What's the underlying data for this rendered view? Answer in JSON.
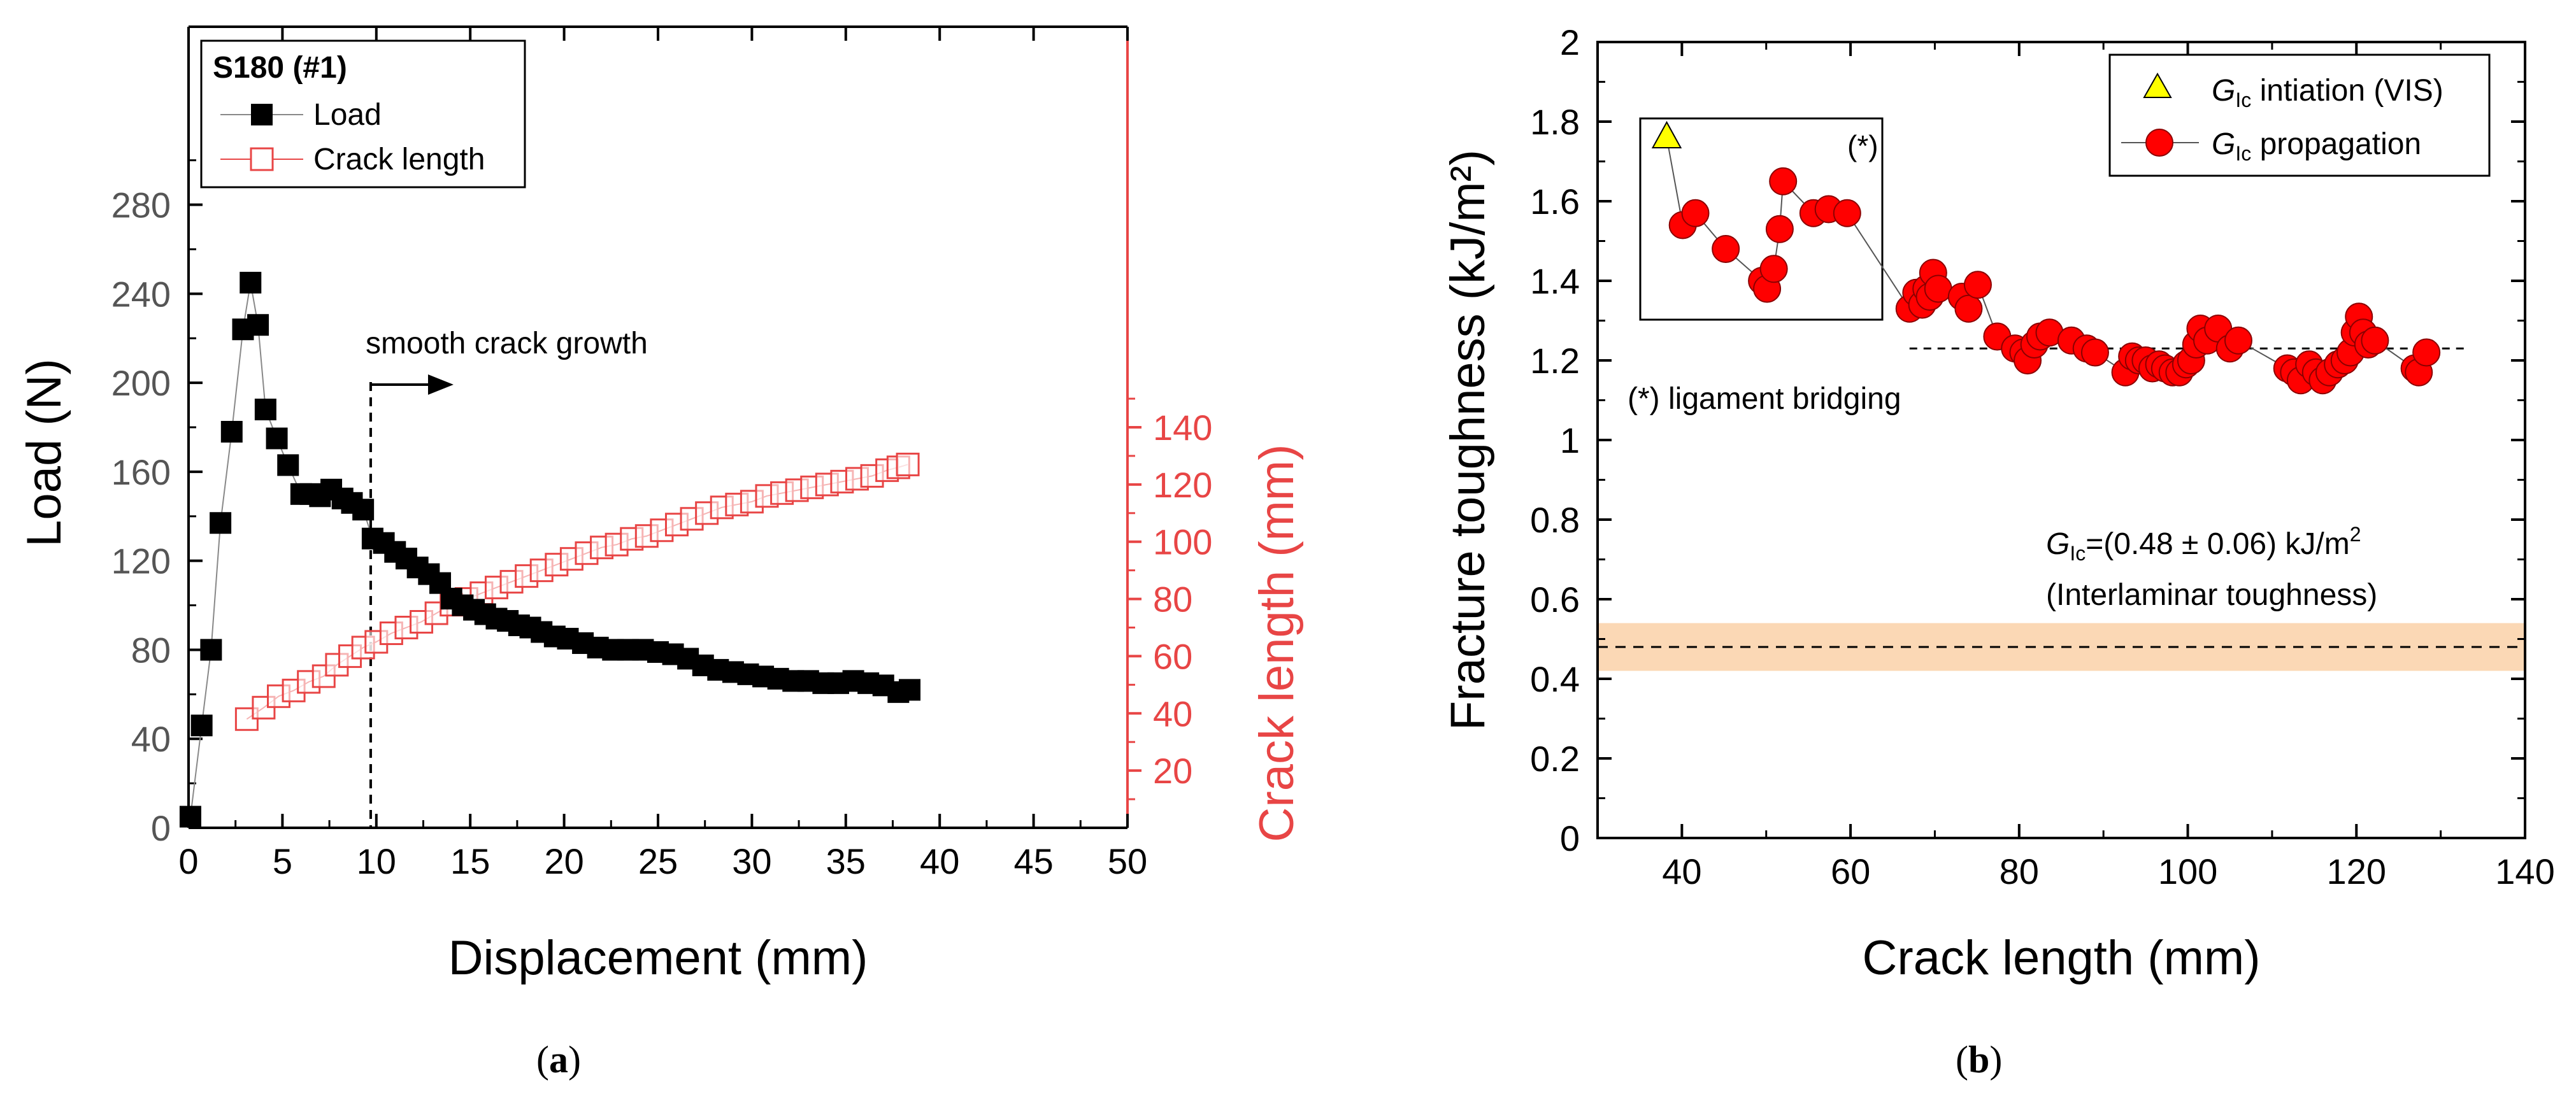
{
  "chart_data": [
    {
      "type": "scatter",
      "panel_label": "a",
      "legend": {
        "title": "S180 (#1)",
        "entries": [
          "Load",
          "Crack length"
        ],
        "placement": "top-left"
      },
      "xlabel": "Displacement (mm)",
      "ylabel": "Load (N)",
      "ylabel_right": "Crack length (mm)",
      "xlim": [
        0,
        50
      ],
      "ylim": [
        0,
        360
      ],
      "ylim_right": [
        0,
        280
      ],
      "x_ticks": [
        "0",
        "5",
        "10",
        "15",
        "20",
        "25",
        "30",
        "35",
        "40",
        "45",
        "50"
      ],
      "y_ticks": [
        "0",
        "40",
        "80",
        "120",
        "160",
        "200",
        "240",
        "280"
      ],
      "y_right_ticks": [
        "20",
        "40",
        "60",
        "80",
        "100",
        "120",
        "140"
      ],
      "annotation": {
        "text": "smooth crack growth",
        "x": 9.7
      },
      "colors": {
        "load": "#000000",
        "crack": "#e84545"
      },
      "series": [
        {
          "name": "Load",
          "axis": "left",
          "marker": "filled-square",
          "points": [
            [
              0.1,
              5
            ],
            [
              0.7,
              46
            ],
            [
              1.2,
              80
            ],
            [
              1.7,
              137
            ],
            [
              2.3,
              178
            ],
            [
              2.9,
              224
            ],
            [
              3.3,
              245
            ],
            [
              3.7,
              226
            ],
            [
              4.1,
              188
            ],
            [
              4.7,
              175
            ],
            [
              5.3,
              163
            ],
            [
              6.0,
              150
            ],
            [
              6.5,
              150
            ],
            [
              7.0,
              149
            ],
            [
              7.6,
              152
            ],
            [
              8.2,
              148
            ],
            [
              8.7,
              146
            ],
            [
              9.3,
              143
            ],
            [
              9.8,
              130
            ],
            [
              10.4,
              128
            ],
            [
              11.0,
              124
            ],
            [
              11.6,
              121
            ],
            [
              12.2,
              117
            ],
            [
              12.8,
              114
            ],
            [
              13.4,
              110
            ],
            [
              14.0,
              103
            ],
            [
              14.6,
              100
            ],
            [
              15.2,
              98
            ],
            [
              15.8,
              96
            ],
            [
              16.4,
              94
            ],
            [
              17.0,
              93
            ],
            [
              17.6,
              91
            ],
            [
              18.2,
              90
            ],
            [
              18.8,
              88
            ],
            [
              19.5,
              86
            ],
            [
              20.2,
              85
            ],
            [
              21.0,
              83
            ],
            [
              21.8,
              81
            ],
            [
              22.6,
              80
            ],
            [
              23.4,
              80
            ],
            [
              24.2,
              80
            ],
            [
              25.0,
              79
            ],
            [
              25.8,
              78
            ],
            [
              26.6,
              76
            ],
            [
              27.4,
              73
            ],
            [
              28.2,
              71
            ],
            [
              29.0,
              70
            ],
            [
              29.8,
              69
            ],
            [
              30.6,
              68
            ],
            [
              31.4,
              67
            ],
            [
              32.2,
              66
            ],
            [
              33.0,
              66
            ],
            [
              33.8,
              65
            ],
            [
              34.6,
              65
            ],
            [
              35.4,
              66
            ],
            [
              36.2,
              65
            ],
            [
              37.0,
              64
            ],
            [
              37.8,
              61
            ],
            [
              38.4,
              62
            ]
          ]
        },
        {
          "name": "Crack length",
          "axis": "right",
          "marker": "open-square",
          "points": [
            [
              3.1,
              38
            ],
            [
              4.0,
              42
            ],
            [
              4.8,
              46
            ],
            [
              5.6,
              48
            ],
            [
              6.4,
              51
            ],
            [
              7.2,
              53
            ],
            [
              7.9,
              57
            ],
            [
              8.6,
              60
            ],
            [
              9.3,
              63
            ],
            [
              10.0,
              65
            ],
            [
              10.8,
              68
            ],
            [
              11.6,
              70
            ],
            [
              12.4,
              72
            ],
            [
              13.2,
              75
            ],
            [
              14.0,
              78
            ],
            [
              14.8,
              80
            ],
            [
              15.6,
              82
            ],
            [
              16.4,
              84
            ],
            [
              17.2,
              86
            ],
            [
              18.0,
              88
            ],
            [
              18.8,
              90
            ],
            [
              19.6,
              92
            ],
            [
              20.4,
              94
            ],
            [
              21.2,
              96
            ],
            [
              22.0,
              98
            ],
            [
              22.8,
              99
            ],
            [
              23.6,
              101
            ],
            [
              24.4,
              102
            ],
            [
              25.2,
              104
            ],
            [
              26.0,
              106
            ],
            [
              26.8,
              108
            ],
            [
              27.6,
              110
            ],
            [
              28.4,
              112
            ],
            [
              29.2,
              113
            ],
            [
              30.0,
              114
            ],
            [
              30.8,
              116
            ],
            [
              31.6,
              117
            ],
            [
              32.4,
              118
            ],
            [
              33.2,
              119
            ],
            [
              34.0,
              120
            ],
            [
              34.8,
              121
            ],
            [
              35.6,
              122
            ],
            [
              36.4,
              123
            ],
            [
              37.2,
              125
            ],
            [
              37.8,
              126
            ],
            [
              38.3,
              127
            ]
          ]
        }
      ]
    },
    {
      "type": "scatter",
      "panel_label": "b",
      "xlabel": "Crack length (mm)",
      "ylabel": "Fracture toughness (kJ/m²)",
      "xlim": [
        30,
        140
      ],
      "ylim": [
        0,
        2
      ],
      "x_ticks": [
        "40",
        "60",
        "80",
        "100",
        "120",
        "140"
      ],
      "y_ticks": [
        "0",
        "0.2",
        "0.4",
        "0.6",
        "0.8",
        "1",
        "1.2",
        "1.4",
        "1.6",
        "1.8",
        "2"
      ],
      "legend": {
        "entries": [
          {
            "symbol": "G",
            "sub": "Ic",
            "text": " intiation (VIS)"
          },
          {
            "symbol": "G",
            "sub": "Ic",
            "text": " propagation"
          }
        ],
        "placement": "top-right"
      },
      "inset_label": "(*)",
      "bridging_note": "(*) ligament bridging",
      "band": {
        "center": 0.48,
        "half_width": 0.06,
        "line1_pre": "G",
        "line1_sub": "Ic",
        "line1_post": "=(0.48 ± 0.06) kJ/m",
        "line1_sup": "2",
        "line2": "(Interlaminar toughness)"
      },
      "plateau_line": {
        "y": 1.23,
        "x_from": 67,
        "x_to": 133
      },
      "colors": {
        "propagation": "#ff0000",
        "initiation": "#ffff00",
        "band": "#fbd8b5"
      },
      "series": [
        {
          "name": "G_Ic intiation (VIS)",
          "marker": "triangle",
          "points": [
            [
              38.2,
              1.76
            ]
          ]
        },
        {
          "name": "G_Ic propagation",
          "marker": "filled-circle",
          "points": [
            [
              40.1,
              1.54
            ],
            [
              41.6,
              1.57
            ],
            [
              45.2,
              1.48
            ],
            [
              49.5,
              1.4
            ],
            [
              50.1,
              1.38
            ],
            [
              50.9,
              1.43
            ],
            [
              51.6,
              1.53
            ],
            [
              52.0,
              1.65
            ],
            [
              55.6,
              1.57
            ],
            [
              57.4,
              1.58
            ],
            [
              59.6,
              1.57
            ],
            [
              67.0,
              1.33
            ],
            [
              67.8,
              1.37
            ],
            [
              68.5,
              1.34
            ],
            [
              69.0,
              1.38
            ],
            [
              69.4,
              1.36
            ],
            [
              69.8,
              1.42
            ],
            [
              70.4,
              1.38
            ],
            [
              73.2,
              1.36
            ],
            [
              74.0,
              1.33
            ],
            [
              75.1,
              1.39
            ],
            [
              77.4,
              1.26
            ],
            [
              79.5,
              1.23
            ],
            [
              80.5,
              1.22
            ],
            [
              81.0,
              1.2
            ],
            [
              81.8,
              1.24
            ],
            [
              82.5,
              1.26
            ],
            [
              83.6,
              1.27
            ],
            [
              86.2,
              1.25
            ],
            [
              88.0,
              1.23
            ],
            [
              89.0,
              1.22
            ],
            [
              92.6,
              1.17
            ],
            [
              93.4,
              1.21
            ],
            [
              94.2,
              1.2
            ],
            [
              95.0,
              1.2
            ],
            [
              95.8,
              1.18
            ],
            [
              96.6,
              1.19
            ],
            [
              97.3,
              1.18
            ],
            [
              98.2,
              1.17
            ],
            [
              99.0,
              1.17
            ],
            [
              99.8,
              1.19
            ],
            [
              100.4,
              1.2
            ],
            [
              101.0,
              1.24
            ],
            [
              101.5,
              1.28
            ],
            [
              102.3,
              1.25
            ],
            [
              103.6,
              1.28
            ],
            [
              105.0,
              1.23
            ],
            [
              106.0,
              1.25
            ],
            [
              111.8,
              1.18
            ],
            [
              112.6,
              1.17
            ],
            [
              113.4,
              1.15
            ],
            [
              114.4,
              1.19
            ],
            [
              115.2,
              1.17
            ],
            [
              116.0,
              1.15
            ],
            [
              116.8,
              1.17
            ],
            [
              117.8,
              1.19
            ],
            [
              118.6,
              1.2
            ],
            [
              119.3,
              1.22
            ],
            [
              119.8,
              1.27
            ],
            [
              120.3,
              1.31
            ],
            [
              120.8,
              1.27
            ],
            [
              121.4,
              1.24
            ],
            [
              122.2,
              1.25
            ],
            [
              126.9,
              1.18
            ],
            [
              127.4,
              1.17
            ],
            [
              128.3,
              1.22
            ]
          ]
        }
      ]
    }
  ]
}
